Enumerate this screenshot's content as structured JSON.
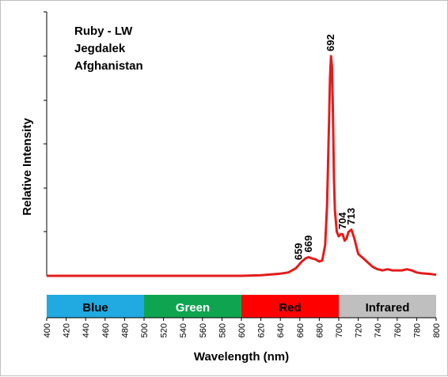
{
  "chart_data": {
    "type": "line",
    "info_lines": [
      "Ruby - LW",
      "Jegdalek",
      "Afghanistan"
    ],
    "xlabel": "Wavelength (nm)",
    "ylabel": "Relative Intensity",
    "xlim": [
      400,
      800
    ],
    "ylim": [
      0,
      100
    ],
    "xticks": [
      400,
      420,
      440,
      460,
      480,
      500,
      520,
      540,
      560,
      580,
      600,
      620,
      640,
      660,
      680,
      700,
      720,
      740,
      760,
      780,
      800
    ],
    "y_gridlines": false,
    "line_color": "#e51c1c",
    "series": [
      {
        "x": [
          400,
          450,
          500,
          550,
          600,
          620,
          640,
          648,
          652,
          656,
          659,
          662,
          666,
          669,
          672,
          676,
          680,
          683,
          686,
          688,
          690,
          691,
          692,
          693,
          694,
          695,
          696,
          698,
          700,
          702,
          704,
          706,
          708,
          710,
          713,
          716,
          720,
          725,
          730,
          735,
          740,
          745,
          750,
          755,
          760,
          765,
          770,
          775,
          780,
          785,
          790,
          795,
          800
        ],
        "y": [
          0,
          0,
          0,
          0,
          0,
          0.3,
          1,
          1.5,
          2.5,
          3.5,
          5,
          6.5,
          8,
          8.5,
          8,
          7.5,
          6.5,
          7,
          14,
          32,
          70,
          90,
          100,
          95,
          75,
          45,
          30,
          20,
          18,
          19,
          19,
          16,
          17,
          20,
          21,
          17,
          10,
          8,
          6,
          4,
          3,
          2.5,
          3,
          2.5,
          2.5,
          2.5,
          3,
          2.5,
          1.5,
          1.2,
          1,
          0.8,
          0.5
        ]
      }
    ],
    "peak_labels": [
      {
        "text": "692",
        "x": 692,
        "y": 100
      },
      {
        "text": "659",
        "x": 659,
        "y": 5
      },
      {
        "text": "669",
        "x": 669,
        "y": 8.5
      },
      {
        "text": "704",
        "x": 704,
        "y": 19
      },
      {
        "text": "713",
        "x": 713,
        "y": 21
      }
    ],
    "bands": [
      {
        "label": "Blue",
        "from": 400,
        "to": 500,
        "color": "#21a9e1",
        "text_color": "#000000"
      },
      {
        "label": "Green",
        "from": 500,
        "to": 600,
        "color": "#0fa550",
        "text_color": "#ffffff"
      },
      {
        "label": "Red",
        "from": 600,
        "to": 700,
        "color": "#ff0000",
        "text_color": "#000000"
      },
      {
        "label": "Infrared",
        "from": 700,
        "to": 800,
        "color": "#bfbfbf",
        "text_color": "#000000"
      }
    ]
  }
}
